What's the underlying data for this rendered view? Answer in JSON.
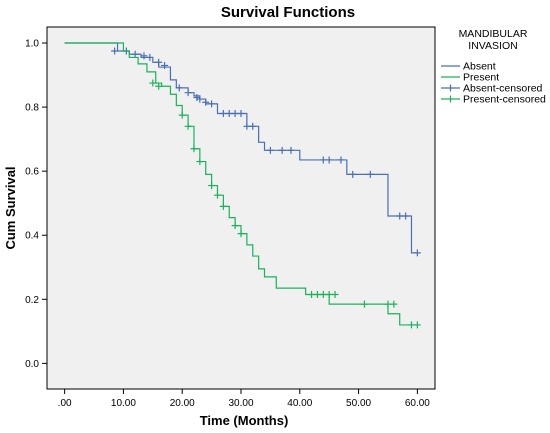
{
  "chart_data": {
    "type": "line",
    "step": true,
    "title": "Survival Functions",
    "xlabel": "Time (Months)",
    "ylabel": "Cum Survival",
    "xlim": [
      -3,
      63
    ],
    "ylim": [
      -0.08,
      1.05
    ],
    "x_ticks": [
      0,
      10,
      20,
      30,
      40,
      50,
      60
    ],
    "x_tick_labels": [
      ".00",
      "10.00",
      "20.00",
      "30.00",
      "40.00",
      "50.00",
      "60.00"
    ],
    "y_ticks": [
      0,
      0.2,
      0.4,
      0.6,
      0.8,
      1.0
    ],
    "y_tick_labels": [
      "0.0",
      "0.2",
      "0.4",
      "0.6",
      "0.8",
      "1.0"
    ],
    "legend": {
      "title_lines": [
        "MANDIBULAR",
        "INVASION"
      ],
      "position": "right",
      "entries": [
        "Absent",
        "Present",
        "Absent-censored",
        "Present-censored"
      ]
    },
    "series": [
      {
        "name": "Absent",
        "color": "#4a6fb5",
        "steps": [
          [
            0,
            1.0
          ],
          [
            9,
            0.975
          ],
          [
            11,
            0.965
          ],
          [
            13,
            0.955
          ],
          [
            15,
            0.94
          ],
          [
            16,
            0.925
          ],
          [
            18,
            0.885
          ],
          [
            19,
            0.86
          ],
          [
            21,
            0.845
          ],
          [
            22,
            0.835
          ],
          [
            23,
            0.825
          ],
          [
            24,
            0.81
          ],
          [
            26,
            0.78
          ],
          [
            31,
            0.74
          ],
          [
            33,
            0.69
          ],
          [
            34,
            0.665
          ],
          [
            40,
            0.635
          ],
          [
            48,
            0.59
          ],
          [
            55,
            0.46
          ],
          [
            59,
            0.345
          ],
          [
            60,
            0.345
          ]
        ],
        "censored": [
          [
            8.5,
            0.975
          ],
          [
            10.5,
            0.975
          ],
          [
            12,
            0.965
          ],
          [
            13.5,
            0.96
          ],
          [
            14.5,
            0.955
          ],
          [
            16,
            0.94
          ],
          [
            17,
            0.93
          ],
          [
            19.5,
            0.86
          ],
          [
            21,
            0.845
          ],
          [
            22.5,
            0.83
          ],
          [
            23,
            0.825
          ],
          [
            24,
            0.815
          ],
          [
            25,
            0.81
          ],
          [
            27,
            0.78
          ],
          [
            28,
            0.78
          ],
          [
            29,
            0.78
          ],
          [
            30,
            0.78
          ],
          [
            31,
            0.74
          ],
          [
            32,
            0.74
          ],
          [
            35,
            0.665
          ],
          [
            37,
            0.665
          ],
          [
            38.5,
            0.665
          ],
          [
            44,
            0.635
          ],
          [
            45,
            0.635
          ],
          [
            47,
            0.635
          ],
          [
            49,
            0.59
          ],
          [
            52,
            0.59
          ],
          [
            57,
            0.46
          ],
          [
            58,
            0.46
          ],
          [
            60,
            0.345
          ]
        ]
      },
      {
        "name": "Present",
        "color": "#19b35a",
        "steps": [
          [
            0,
            1.0
          ],
          [
            10,
            0.975
          ],
          [
            11,
            0.955
          ],
          [
            12.5,
            0.935
          ],
          [
            14,
            0.91
          ],
          [
            15.5,
            0.875
          ],
          [
            16.5,
            0.865
          ],
          [
            18,
            0.84
          ],
          [
            19,
            0.805
          ],
          [
            20,
            0.775
          ],
          [
            21,
            0.74
          ],
          [
            22,
            0.67
          ],
          [
            23,
            0.63
          ],
          [
            24,
            0.59
          ],
          [
            25,
            0.555
          ],
          [
            26,
            0.525
          ],
          [
            27,
            0.49
          ],
          [
            28,
            0.455
          ],
          [
            29,
            0.43
          ],
          [
            30,
            0.405
          ],
          [
            31,
            0.37
          ],
          [
            32,
            0.335
          ],
          [
            33,
            0.295
          ],
          [
            34,
            0.27
          ],
          [
            36,
            0.235
          ],
          [
            41,
            0.215
          ],
          [
            45,
            0.185
          ],
          [
            55,
            0.155
          ],
          [
            57,
            0.12
          ],
          [
            60,
            0.12
          ]
        ],
        "censored": [
          [
            15,
            0.875
          ],
          [
            16,
            0.865
          ],
          [
            20,
            0.775
          ],
          [
            21,
            0.74
          ],
          [
            22,
            0.67
          ],
          [
            23,
            0.63
          ],
          [
            25,
            0.555
          ],
          [
            26,
            0.525
          ],
          [
            27,
            0.49
          ],
          [
            29,
            0.43
          ],
          [
            30,
            0.405
          ],
          [
            42,
            0.215
          ],
          [
            43,
            0.215
          ],
          [
            44,
            0.215
          ],
          [
            45,
            0.215
          ],
          [
            46,
            0.215
          ],
          [
            51,
            0.185
          ],
          [
            55,
            0.185
          ],
          [
            56,
            0.185
          ],
          [
            59,
            0.12
          ],
          [
            60,
            0.12
          ]
        ]
      }
    ]
  }
}
